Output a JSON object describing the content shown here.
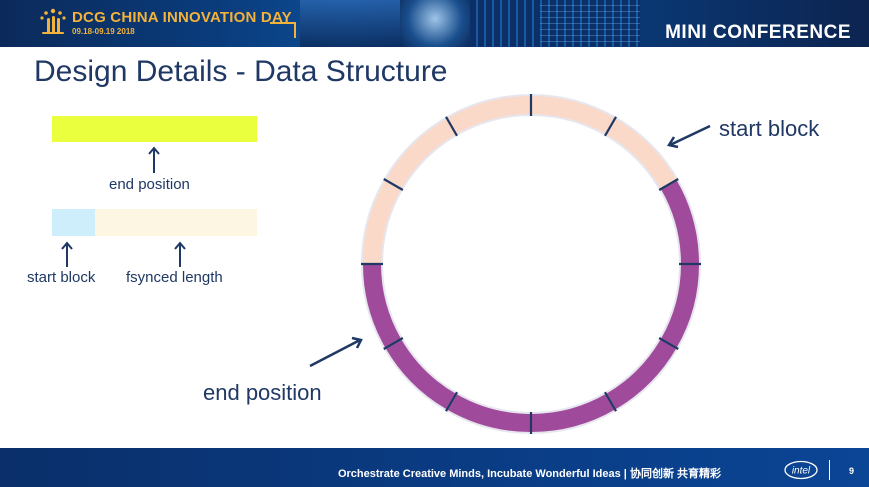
{
  "banner": {
    "event_title": "DCG CHINA INNOVATION DAY",
    "event_dates": "09.18-09.19 2018",
    "section": "MINI CONFERENCE",
    "logo_icon": "dcg-sunburst-logo",
    "accent_color": "#f3b23a"
  },
  "slide": {
    "title": "Design Details - Data Structure"
  },
  "legend": {
    "end_position_label": "end position",
    "start_block_label": "start block",
    "fsynced_length_label": "fsynced length",
    "colors": {
      "end_position": "#eaff3e",
      "start_block": "#cdeefa",
      "fsynced_length": "#fdf6e2"
    }
  },
  "ring": {
    "segments_total": 12,
    "used_color": "#a04a9c",
    "free_color": "#fbd9c8",
    "divider_color": "#1f3864"
  },
  "callouts": {
    "start_block": "start block",
    "end_position": "end position"
  },
  "footer": {
    "tagline": "Orchestrate Creative Minds, Incubate Wonderful Ideas | 协同创新 共育精彩",
    "brand": "intel",
    "page_number": "9"
  }
}
